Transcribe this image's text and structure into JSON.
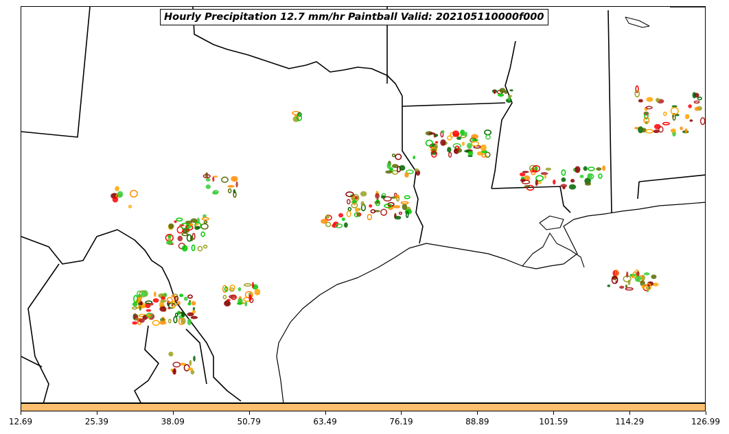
{
  "title": "Hourly Precipitation 12.7 mm/hr Paintball Valid: 202105110000f000",
  "colorbar": {
    "color": "#fdbf6f",
    "ticks": [
      "12.69",
      "25.39",
      "38.09",
      "50.79",
      "63.49",
      "76.19",
      "88.89",
      "101.59",
      "114.29",
      "126.99"
    ]
  },
  "member_colors": [
    "#00c800",
    "#006400",
    "#ff0000",
    "#8b0000",
    "#ff8c00",
    "#ffa500",
    "#9aa020",
    "#556b00",
    "#32cd32",
    "#b22222"
  ]
}
